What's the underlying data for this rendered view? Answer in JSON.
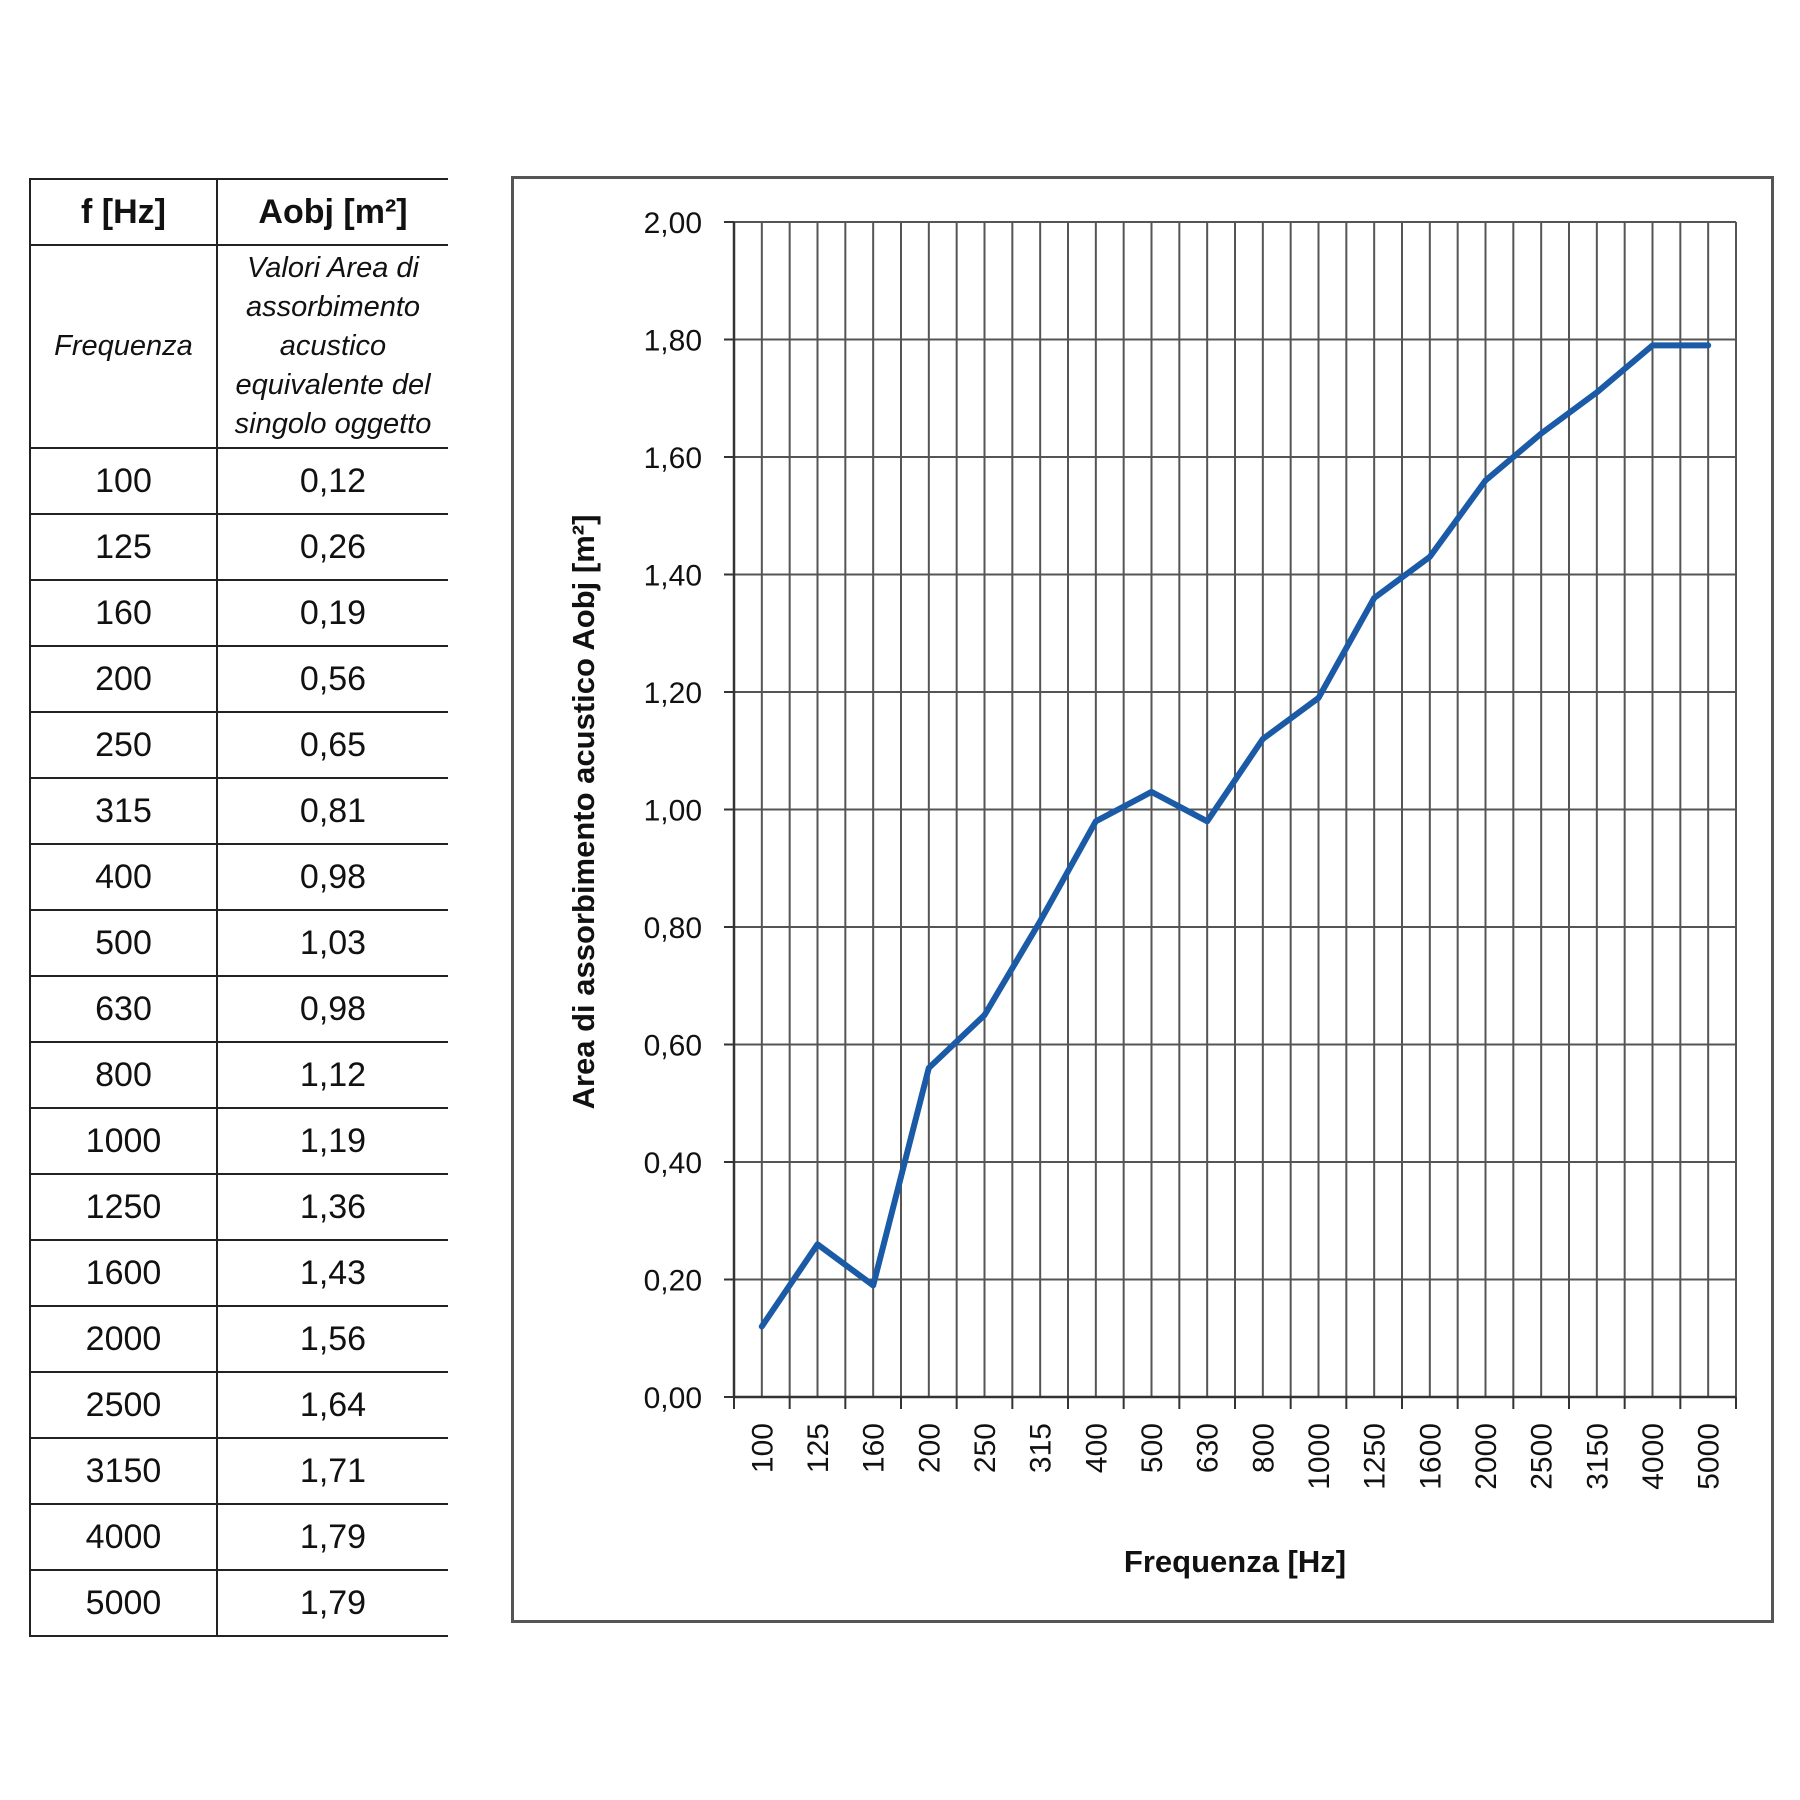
{
  "table": {
    "header": {
      "col1": "f [Hz]",
      "col2": "Aobj [m²]"
    },
    "description": {
      "col1": "Frequenza",
      "col2": [
        "Valori Area di",
        "assorbimento",
        "acustico",
        "equivalente del",
        "singolo oggetto"
      ]
    },
    "rows": [
      {
        "f": "100",
        "a": "0,12"
      },
      {
        "f": "125",
        "a": "0,26"
      },
      {
        "f": "160",
        "a": "0,19"
      },
      {
        "f": "200",
        "a": "0,56"
      },
      {
        "f": "250",
        "a": "0,65"
      },
      {
        "f": "315",
        "a": "0,81"
      },
      {
        "f": "400",
        "a": "0,98"
      },
      {
        "f": "500",
        "a": "1,03"
      },
      {
        "f": "630",
        "a": "0,98"
      },
      {
        "f": "800",
        "a": "1,12"
      },
      {
        "f": "1000",
        "a": "1,19"
      },
      {
        "f": "1250",
        "a": "1,36"
      },
      {
        "f": "1600",
        "a": "1,43"
      },
      {
        "f": "2000",
        "a": "1,56"
      },
      {
        "f": "2500",
        "a": "1,64"
      },
      {
        "f": "3150",
        "a": "1,71"
      },
      {
        "f": "4000",
        "a": "1,79"
      },
      {
        "f": "5000",
        "a": "1,79"
      }
    ]
  },
  "chart_data": {
    "type": "line",
    "title": "",
    "xlabel": "Frequenza [Hz]",
    "ylabel": "Area di assorbimento acustico Aobj [m²]",
    "categories": [
      "100",
      "125",
      "160",
      "200",
      "250",
      "315",
      "400",
      "500",
      "630",
      "800",
      "1000",
      "1250",
      "1600",
      "2000",
      "2500",
      "3150",
      "4000",
      "5000"
    ],
    "series": [
      {
        "values": [
          0.12,
          0.26,
          0.19,
          0.56,
          0.65,
          0.81,
          0.98,
          1.03,
          0.98,
          1.12,
          1.19,
          1.36,
          1.43,
          1.56,
          1.64,
          1.71,
          1.79,
          1.79
        ],
        "color": "#1a5aa6"
      }
    ],
    "ylim": [
      0,
      2
    ],
    "yticks": [
      "0,00",
      "0,20",
      "0,40",
      "0,60",
      "0,80",
      "1,00",
      "1,20",
      "1,40",
      "1,60",
      "1,80",
      "2,00"
    ],
    "grid": true,
    "legend": "none"
  }
}
